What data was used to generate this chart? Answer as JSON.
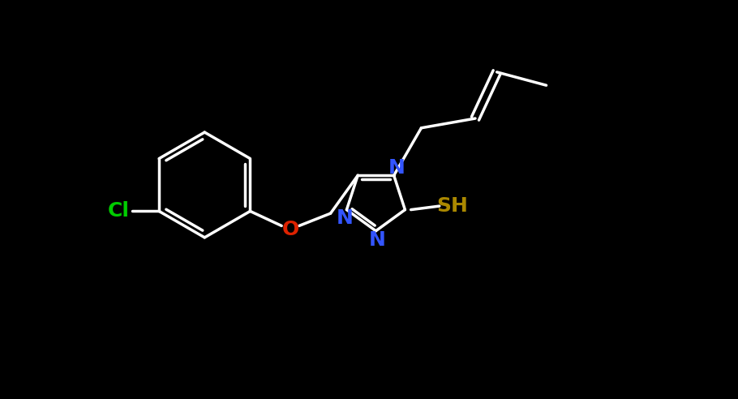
{
  "bg": "#000000",
  "wc": "#ffffff",
  "cl_color": "#00cc00",
  "o_color": "#dd2200",
  "n_color": "#3355ff",
  "sh_color": "#aa8800",
  "lw": 2.5,
  "fs": 18,
  "figsize": [
    9.1,
    4.92
  ],
  "dpi": 100,
  "xlim": [
    -0.5,
    9.6
  ],
  "ylim": [
    -0.2,
    5.2
  ]
}
